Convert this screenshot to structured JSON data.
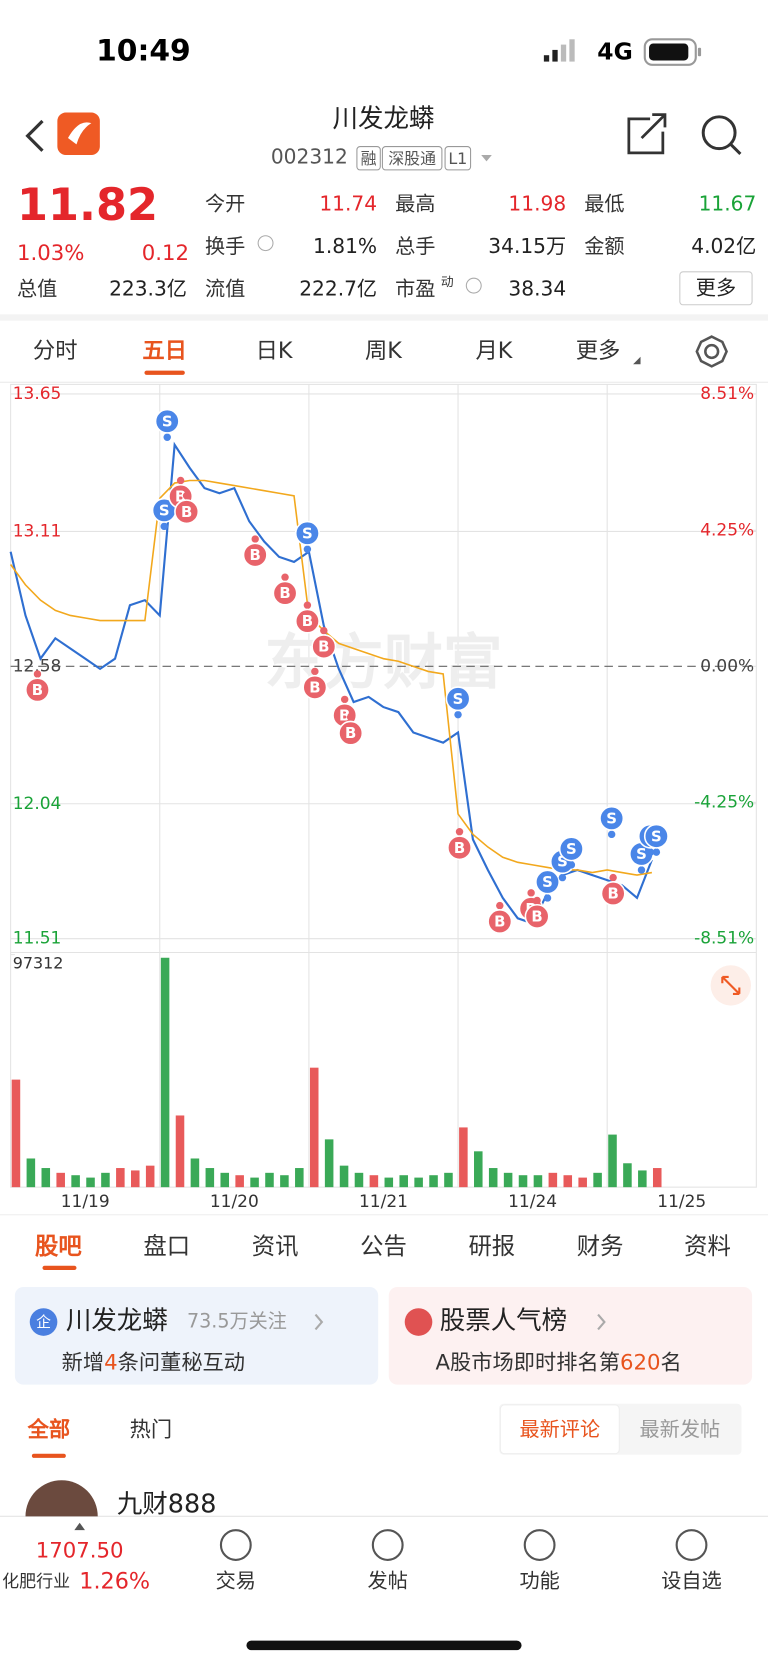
{
  "status_bar": {
    "time": "10:49",
    "network": "4G"
  },
  "header": {
    "title": "川发龙蟒",
    "code": "002312",
    "tags": [
      "融",
      "深股通",
      "L1"
    ],
    "logo": "东方财富"
  },
  "quote": {
    "price": "11.82",
    "change_pct": "1.03%",
    "change": "0.12",
    "stats": [
      {
        "label": "今开",
        "value": "11.74",
        "color": "#e4262b"
      },
      {
        "label": "最高",
        "value": "11.98",
        "color": "#e4262b"
      },
      {
        "label": "最低",
        "value": "11.67",
        "color": "#1aa338"
      },
      {
        "label": "换手",
        "value": "1.81%",
        "color": "#222"
      },
      {
        "label": "总手",
        "value": "34.15万",
        "color": "#222"
      },
      {
        "label": "金额",
        "value": "4.02亿",
        "color": "#222"
      },
      {
        "label": "总值",
        "value": "223.3亿",
        "color": "#222"
      },
      {
        "label": "流值",
        "value": "222.7亿",
        "color": "#222"
      },
      {
        "label": "市盈",
        "value": "38.34",
        "color": "#222"
      }
    ],
    "pe_sup": "动",
    "more": "更多"
  },
  "chart_tabs": [
    "分时",
    "五日",
    "日K",
    "周K",
    "月K",
    "更多"
  ],
  "chart_data": {
    "type": "line",
    "watermark": "东方财富",
    "days": [
      "11/19",
      "11/20",
      "11/21",
      "11/24",
      "11/25"
    ],
    "ylim": [
      11.51,
      13.65
    ],
    "yticks": [
      13.65,
      13.11,
      12.58,
      12.04,
      11.51
    ],
    "y2lim": [
      -8.51,
      8.51
    ],
    "y2ticks": [
      {
        "value": 8.51,
        "label": "8.51%"
      },
      {
        "value": 4.25,
        "label": "4.25%"
      },
      {
        "value": 0,
        "label": "0.00%"
      },
      {
        "value": -4.25,
        "label": "-4.25%"
      },
      {
        "value": -8.51,
        "label": "-8.51%"
      }
    ],
    "series": [
      {
        "name": "price",
        "color": "#2f6fd1",
        "values": [
          13.03,
          12.78,
          12.61,
          12.69,
          12.65,
          12.61,
          12.57,
          12.61,
          12.82,
          12.84,
          12.78,
          13.45,
          13.36,
          13.28,
          13.26,
          13.28,
          13.15,
          13.07,
          13.01,
          12.99,
          13.03,
          12.74,
          12.57,
          12.44,
          12.46,
          12.42,
          12.4,
          12.32,
          12.3,
          12.28,
          12.32,
          11.9,
          11.78,
          11.67,
          11.59,
          11.57,
          11.69,
          11.76,
          11.78,
          11.76,
          11.74,
          11.72,
          11.67,
          11.82
        ]
      },
      {
        "name": "average",
        "color": "#f2a81d",
        "values": [
          12.98,
          12.9,
          12.84,
          12.8,
          12.78,
          12.77,
          12.76,
          12.76,
          12.76,
          12.76,
          13.24,
          13.3,
          13.31,
          13.31,
          13.3,
          13.29,
          13.28,
          13.27,
          13.26,
          13.25,
          12.78,
          12.72,
          12.67,
          12.65,
          12.63,
          12.61,
          12.6,
          12.58,
          12.56,
          12.55,
          12.0,
          11.92,
          11.87,
          11.83,
          11.81,
          11.8,
          11.79,
          11.78,
          11.78,
          11.77,
          11.78,
          11.77,
          11.76,
          11.77
        ]
      }
    ],
    "markers": [
      {
        "label": "B",
        "index": 1.8,
        "price": 12.55
      },
      {
        "label": "S",
        "index": 10.5,
        "price": 13.48
      },
      {
        "label": "S",
        "index": 10.3,
        "price": 13.13
      },
      {
        "label": "B",
        "index": 11.4,
        "price": 13.31
      },
      {
        "label": "B",
        "index": 11.8,
        "price": 13.25
      },
      {
        "label": "B",
        "index": 16.4,
        "price": 13.08
      },
      {
        "label": "B",
        "index": 18.4,
        "price": 12.93
      },
      {
        "label": "S",
        "index": 19.9,
        "price": 13.04
      },
      {
        "label": "B",
        "index": 19.9,
        "price": 12.82
      },
      {
        "label": "B",
        "index": 21.0,
        "price": 12.72
      },
      {
        "label": "B",
        "index": 20.4,
        "price": 12.56
      },
      {
        "label": "B",
        "index": 22.4,
        "price": 12.45
      },
      {
        "label": "B",
        "index": 22.8,
        "price": 12.38
      },
      {
        "label": "S",
        "index": 30.0,
        "price": 12.39
      },
      {
        "label": "B",
        "index": 30.1,
        "price": 11.93
      },
      {
        "label": "B",
        "index": 32.8,
        "price": 11.64
      },
      {
        "label": "B",
        "index": 34.9,
        "price": 11.69
      },
      {
        "label": "B",
        "index": 35.3,
        "price": 11.66
      },
      {
        "label": "S",
        "index": 36.0,
        "price": 11.67
      },
      {
        "label": "S",
        "index": 37.0,
        "price": 11.75
      },
      {
        "label": "S",
        "index": 37.6,
        "price": 11.8
      },
      {
        "label": "S",
        "index": 40.3,
        "price": 11.92
      },
      {
        "label": "B",
        "index": 40.4,
        "price": 11.75
      },
      {
        "label": "S",
        "index": 42.3,
        "price": 11.78
      },
      {
        "label": "S",
        "index": 42.9,
        "price": 11.85
      },
      {
        "label": "S",
        "index": 43.3,
        "price": 11.85
      }
    ],
    "volume_max": 97312,
    "volume": [
      45000,
      12000,
      8000,
      6000,
      5000,
      4000,
      6000,
      8000,
      7000,
      9000,
      96000,
      30000,
      12000,
      8000,
      6000,
      5000,
      4000,
      6000,
      5000,
      8000,
      50000,
      20000,
      9000,
      6000,
      5000,
      4000,
      5000,
      4000,
      5000,
      6000,
      25000,
      15000,
      8000,
      6000,
      5000,
      5000,
      6000,
      5000,
      4000,
      6000,
      22000,
      10000,
      7000,
      8000
    ]
  },
  "info_tabs": [
    "股吧",
    "盘口",
    "资讯",
    "公告",
    "研报",
    "财务",
    "资料"
  ],
  "cards": [
    {
      "icon": "企",
      "title": "川发龙蟒",
      "follow": "73.5万关注",
      "line": [
        "新增",
        "4",
        "条问董秘互动"
      ]
    },
    {
      "title": "股票人气榜",
      "line": [
        "A股市场即时排名第",
        "620",
        "名"
      ]
    }
  ],
  "filters": [
    "全部",
    "热门"
  ],
  "sorts": [
    "最新评论",
    "最新发帖"
  ],
  "post": {
    "author": "九财888"
  },
  "bottom_bar": {
    "index_value": "1707.50",
    "index_name": "化肥行业",
    "index_change": "1.26%",
    "actions": [
      "交易",
      "发帖",
      "功能",
      "设自选"
    ]
  }
}
